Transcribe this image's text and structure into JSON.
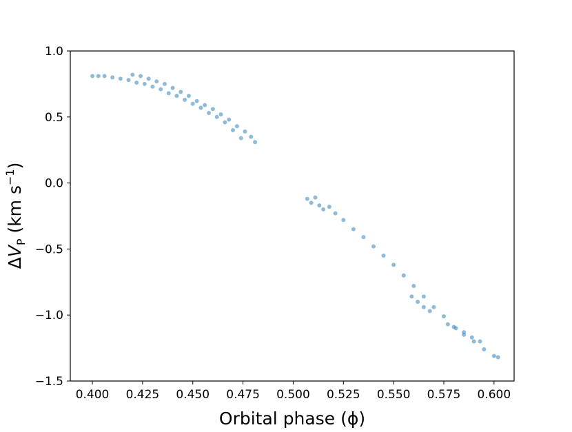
{
  "chart_data": {
    "type": "scatter",
    "xlabel": "Orbital phase (ϕ)",
    "ylabel": [
      "Δ",
      "V",
      "P",
      " (km s",
      "−1",
      ")"
    ],
    "xlim": [
      0.389,
      0.61
    ],
    "ylim": [
      -1.5,
      1.0
    ],
    "xticks": [
      {
        "value": 0.4,
        "label": "0.400"
      },
      {
        "value": 0.425,
        "label": "0.425"
      },
      {
        "value": 0.45,
        "label": "0.450"
      },
      {
        "value": 0.475,
        "label": "0.475"
      },
      {
        "value": 0.5,
        "label": "0.500"
      },
      {
        "value": 0.525,
        "label": "0.525"
      },
      {
        "value": 0.55,
        "label": "0.550"
      },
      {
        "value": 0.575,
        "label": "0.575"
      },
      {
        "value": 0.6,
        "label": "0.600"
      }
    ],
    "yticks": [
      {
        "value": 1.0,
        "label": "1.0"
      },
      {
        "value": 0.5,
        "label": "0.5"
      },
      {
        "value": 0.0,
        "label": "0.0"
      },
      {
        "value": -0.5,
        "label": "−0.5"
      },
      {
        "value": -1.0,
        "label": "−1.0"
      },
      {
        "value": -1.5,
        "label": "−1.5"
      }
    ],
    "series": [
      {
        "color": "#1f77b4",
        "x": [
          0.4,
          0.403,
          0.406,
          0.41,
          0.414,
          0.418,
          0.422,
          0.426,
          0.43,
          0.434,
          0.438,
          0.442,
          0.446,
          0.45,
          0.454,
          0.458,
          0.462,
          0.466,
          0.47,
          0.474,
          0.42,
          0.424,
          0.428,
          0.432,
          0.436,
          0.44,
          0.444,
          0.448,
          0.452,
          0.456,
          0.46,
          0.464,
          0.468,
          0.472,
          0.476,
          0.479,
          0.481,
          0.507,
          0.509,
          0.511,
          0.513,
          0.515,
          0.518,
          0.521,
          0.525,
          0.53,
          0.535,
          0.54,
          0.545,
          0.55,
          0.555,
          0.56,
          0.565,
          0.57,
          0.575,
          0.58,
          0.585,
          0.59,
          0.595,
          0.6,
          0.602,
          0.559,
          0.562,
          0.565,
          0.568,
          0.577,
          0.581,
          0.585,
          0.589,
          0.593
        ],
        "values": [
          0.81,
          0.81,
          0.81,
          0.8,
          0.79,
          0.78,
          0.76,
          0.75,
          0.73,
          0.71,
          0.68,
          0.66,
          0.63,
          0.6,
          0.57,
          0.53,
          0.5,
          0.46,
          0.4,
          0.34,
          0.82,
          0.81,
          0.79,
          0.77,
          0.75,
          0.72,
          0.69,
          0.66,
          0.62,
          0.59,
          0.56,
          0.52,
          0.48,
          0.43,
          0.39,
          0.35,
          0.31,
          -0.12,
          -0.15,
          -0.11,
          -0.17,
          -0.2,
          -0.18,
          -0.23,
          -0.28,
          -0.35,
          -0.41,
          -0.48,
          -0.55,
          -0.62,
          -0.7,
          -0.78,
          -0.86,
          -0.94,
          -1.01,
          -1.09,
          -1.15,
          -1.2,
          -1.26,
          -1.31,
          -1.32,
          -0.86,
          -0.9,
          -0.94,
          -0.97,
          -1.07,
          -1.1,
          -1.13,
          -1.17,
          -1.2
        ]
      }
    ]
  }
}
